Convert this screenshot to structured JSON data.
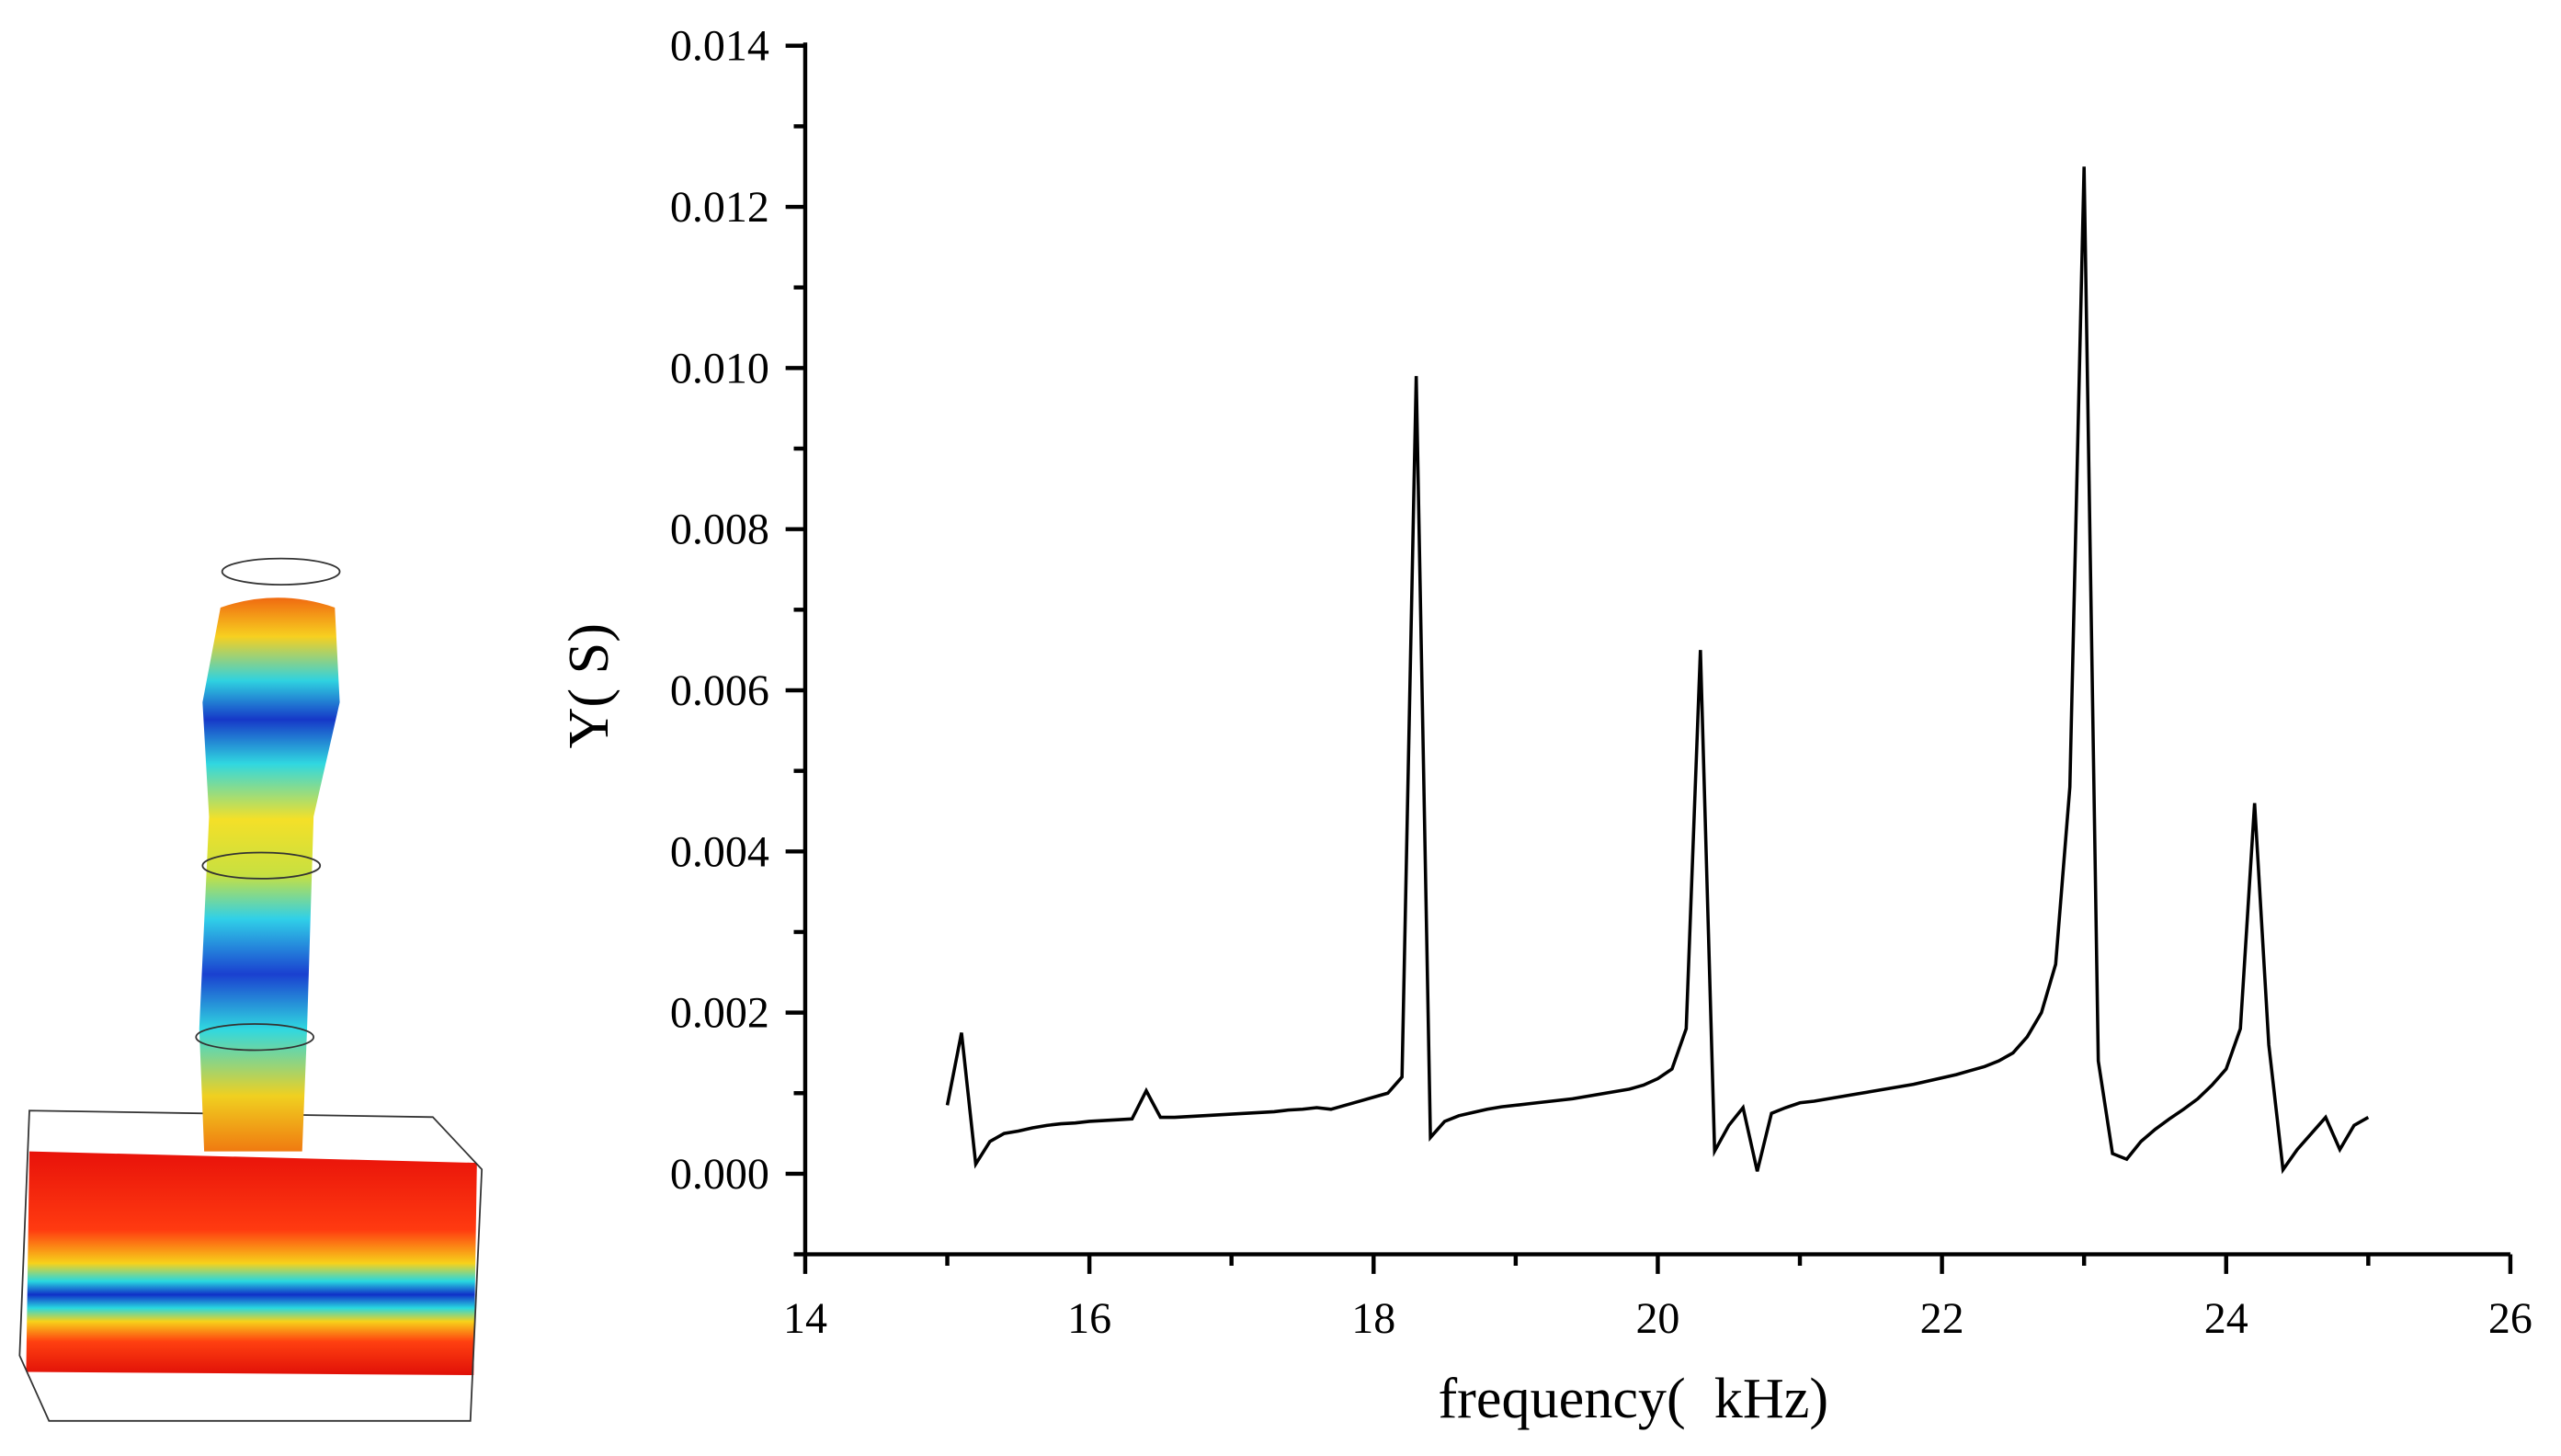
{
  "chart_data": {
    "type": "line",
    "xlabel": "frequency(  kHz)",
    "ylabel": "Y( S)",
    "x": [
      15.0,
      15.1,
      15.2,
      15.3,
      15.4,
      15.5,
      15.6,
      15.7,
      15.8,
      15.9,
      16.0,
      16.1,
      16.2,
      16.3,
      16.4,
      16.5,
      16.6,
      16.7,
      16.8,
      16.9,
      17.0,
      17.1,
      17.2,
      17.3,
      17.4,
      17.5,
      17.6,
      17.7,
      17.8,
      17.9,
      18.0,
      18.1,
      18.2,
      18.3,
      18.4,
      18.5,
      18.6,
      18.7,
      18.8,
      18.9,
      19.0,
      19.1,
      19.2,
      19.3,
      19.4,
      19.5,
      19.6,
      19.7,
      19.8,
      19.9,
      20.0,
      20.1,
      20.2,
      20.3,
      20.4,
      20.5,
      20.6,
      20.7,
      20.8,
      20.9,
      21.0,
      21.1,
      21.2,
      21.3,
      21.4,
      21.5,
      21.6,
      21.7,
      21.8,
      21.9,
      22.0,
      22.1,
      22.2,
      22.3,
      22.4,
      22.5,
      22.6,
      22.7,
      22.8,
      22.9,
      23.0,
      23.1,
      23.2,
      23.3,
      23.4,
      23.5,
      23.6,
      23.7,
      23.8,
      23.9,
      24.0,
      24.1,
      24.2,
      24.3,
      24.4,
      24.5,
      24.6,
      24.7,
      24.8,
      24.9,
      25.0
    ],
    "series": [
      {
        "color": "#000000",
        "values": [
          0.00085,
          0.00175,
          0.00012,
          0.0004,
          0.0005,
          0.00053,
          0.00057,
          0.0006,
          0.00062,
          0.00063,
          0.00065,
          0.00066,
          0.00067,
          0.00068,
          0.00103,
          0.0007,
          0.0007,
          0.00071,
          0.00072,
          0.00073,
          0.00074,
          0.00075,
          0.00076,
          0.00077,
          0.00079,
          0.0008,
          0.00082,
          0.0008,
          0.00085,
          0.0009,
          0.00095,
          0.001,
          0.0012,
          0.0099,
          0.00045,
          0.00065,
          0.00072,
          0.00076,
          0.0008,
          0.00083,
          0.00085,
          0.00087,
          0.00089,
          0.00091,
          0.00093,
          0.00096,
          0.00099,
          0.00102,
          0.00105,
          0.0011,
          0.00118,
          0.0013,
          0.0018,
          0.0065,
          0.00028,
          0.0006,
          0.00082,
          3e-05,
          0.00075,
          0.00082,
          0.00088,
          0.0009,
          0.00093,
          0.00096,
          0.00099,
          0.00102,
          0.00105,
          0.00108,
          0.00111,
          0.00115,
          0.00119,
          0.00123,
          0.00128,
          0.00133,
          0.0014,
          0.0015,
          0.0017,
          0.002,
          0.0026,
          0.0048,
          0.0125,
          0.0014,
          0.00025,
          0.00018,
          0.0004,
          0.00055,
          0.00068,
          0.0008,
          0.00093,
          0.0011,
          0.0013,
          0.0018,
          0.0046,
          0.0016,
          5e-05,
          0.0003,
          0.0005,
          0.0007,
          0.0003,
          0.0006,
          0.0007
        ]
      }
    ],
    "xlim": [
      14,
      26
    ],
    "xticks": [
      14,
      16,
      18,
      20,
      22,
      24,
      26
    ],
    "xminorticks": [
      15,
      17,
      19,
      21,
      23,
      25
    ],
    "ylim": [
      -0.001,
      0.014
    ],
    "yticks": [
      {
        "value": 0,
        "label": "0.000"
      },
      0.002,
      0.004,
      0.006,
      0.008,
      {
        "value": 0.01,
        "label": "0.010"
      },
      0.012,
      0.014
    ],
    "yminorticks": [
      -0.001,
      0.001,
      0.003,
      0.005,
      0.007,
      0.009,
      0.011,
      0.013
    ]
  }
}
